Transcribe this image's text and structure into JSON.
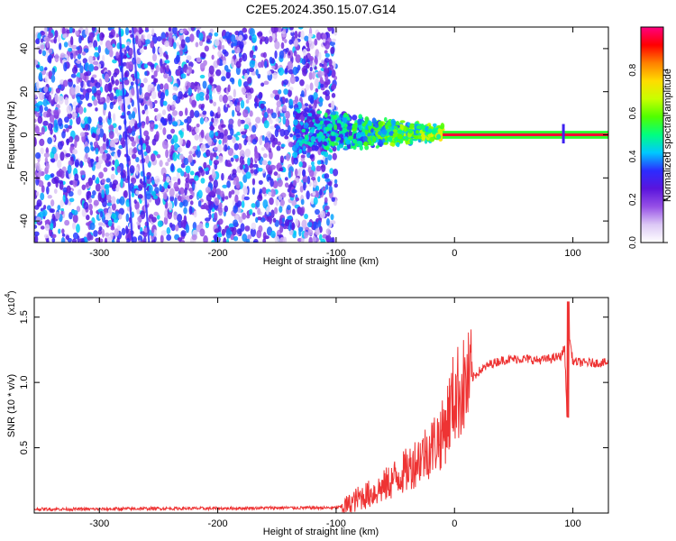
{
  "figure_title": "C2E5.2024.350.15.07.G14",
  "chart_data": [
    {
      "type": "heatmap",
      "title": "C2E5.2024.350.15.07.G14",
      "xlabel": "Height of straight line (km)",
      "ylabel": "Frequency (Hz)",
      "xlim": [
        -355,
        130
      ],
      "ylim": [
        -50,
        50
      ],
      "xticks": [
        -300,
        -200,
        -100,
        0,
        100
      ],
      "yticks": [
        -40,
        -20,
        0,
        20,
        40
      ],
      "grid": false,
      "colorbar": {
        "label": "Normalized spectral amplitude",
        "range": [
          0,
          1
        ],
        "ticks": [
          "0.0",
          "0.2",
          "0.4",
          "0.6",
          "0.8"
        ],
        "colors": [
          "#ffffff",
          "#dcc8f5",
          "#9650e6",
          "#5a14dc",
          "#2c2cff",
          "#00c8ff",
          "#00ff80",
          "#50ff00",
          "#c8ff00",
          "#ffdc00",
          "#ff8000",
          "#ff0000",
          "#ff0080"
        ]
      },
      "regions": [
        {
          "name": "broadband-noise",
          "x": [
            -355,
            -100
          ],
          "y": [
            -50,
            50
          ],
          "level": 0.15
        },
        {
          "name": "transition",
          "x": [
            -135,
            -10
          ],
          "y": [
            -12,
            14
          ],
          "level": 0.35
        },
        {
          "name": "carrier-line",
          "x": [
            -10,
            130
          ],
          "y": [
            -1,
            1
          ],
          "level": 0.95
        }
      ]
    },
    {
      "type": "line",
      "xlabel": "Height of straight line (km)",
      "ylabel": "SNR (10 * v/v)",
      "y_multiplier": "(x10",
      "y_multiplier_exp": "4",
      "y_multiplier_close": ")",
      "xlim": [
        -355,
        130
      ],
      "ylim": [
        0,
        1.65
      ],
      "xticks": [
        -300,
        -200,
        -100,
        0,
        100
      ],
      "yticks": [
        0.5,
        1.0,
        1.5
      ],
      "ytick_labels": [
        "0.5",
        "1.0",
        "1.5"
      ],
      "color": "#ee3333",
      "series": [
        {
          "x": [
            -355,
            -300,
            -250,
            -200,
            -150,
            -100,
            -90,
            -80,
            -70,
            -60,
            -50,
            -40,
            -30,
            -20,
            -15,
            -10,
            -5,
            0,
            10,
            20,
            30,
            40,
            50,
            60,
            70,
            80,
            90,
            93,
            95,
            97,
            100,
            110,
            120,
            130
          ],
          "y": [
            0.03,
            0.03,
            0.035,
            0.035,
            0.04,
            0.04,
            0.06,
            0.12,
            0.15,
            0.2,
            0.27,
            0.33,
            0.42,
            0.5,
            0.56,
            0.6,
            0.75,
            0.9,
            0.98,
            1.08,
            1.14,
            1.17,
            1.18,
            1.18,
            1.17,
            1.18,
            1.2,
            1.27,
            0.75,
            1.35,
            1.16,
            1.15,
            1.15,
            1.15
          ]
        }
      ],
      "annotations": [
        {
          "x": 96,
          "y": 1.62,
          "label": ""
        },
        {
          "x": 96,
          "y": 0.72,
          "label": ""
        }
      ]
    }
  ]
}
